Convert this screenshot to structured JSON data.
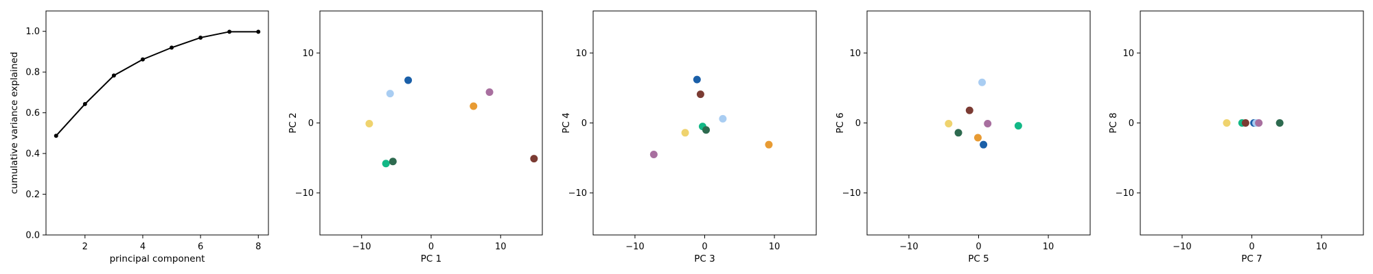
{
  "chart_data": [
    {
      "type": "line",
      "xlabel": "principal component",
      "ylabel": "cumulative variance explained",
      "xlim": [
        0.65,
        8.35
      ],
      "ylim": [
        0.0,
        1.1
      ],
      "xticks": [
        2,
        4,
        6,
        8
      ],
      "yticks": [
        0.0,
        0.2,
        0.4,
        0.6,
        0.8,
        1.0
      ],
      "xtick_labels": [
        "2",
        "4",
        "6",
        "8"
      ],
      "ytick_labels": [
        "0.0",
        "0.2",
        "0.4",
        "0.6",
        "0.8",
        "1.0"
      ],
      "series": [
        {
          "color": "#000000",
          "marker": "dot",
          "x": [
            1,
            2,
            3,
            4,
            5,
            6,
            7,
            8
          ],
          "y": [
            0.487,
            0.643,
            0.783,
            0.862,
            0.92,
            0.969,
            0.998,
            0.998
          ]
        }
      ],
      "grid": false
    },
    {
      "type": "scatter",
      "xlabel": "PC 1",
      "ylabel": "PC 2",
      "xlim": [
        -16,
        16
      ],
      "ylim": [
        -16,
        16
      ],
      "xticks": [
        -10,
        0,
        10
      ],
      "yticks": [
        -10,
        0,
        10
      ],
      "xtick_labels": [
        "−10",
        "0",
        "10"
      ],
      "ytick_labels": [
        "−10",
        "0",
        "10"
      ],
      "points": [
        {
          "x": -3.3,
          "y": 6.1,
          "color": "#1a5fa8"
        },
        {
          "x": -5.9,
          "y": 4.2,
          "color": "#a9cdf2"
        },
        {
          "x": 8.4,
          "y": 4.4,
          "color": "#a86f9f"
        },
        {
          "x": 6.1,
          "y": 2.4,
          "color": "#e89b33"
        },
        {
          "x": -8.9,
          "y": -0.1,
          "color": "#efd36e"
        },
        {
          "x": -6.5,
          "y": -5.8,
          "color": "#12b886"
        },
        {
          "x": -5.5,
          "y": -5.5,
          "color": "#2d6a4f"
        },
        {
          "x": 14.8,
          "y": -5.1,
          "color": "#7b3b33"
        }
      ],
      "grid": false
    },
    {
      "type": "scatter",
      "xlabel": "PC 3",
      "ylabel": "PC 4",
      "xlim": [
        -16,
        16
      ],
      "ylim": [
        -16,
        16
      ],
      "xticks": [
        -10,
        0,
        10
      ],
      "yticks": [
        -10,
        0,
        10
      ],
      "xtick_labels": [
        "−10",
        "0",
        "10"
      ],
      "ytick_labels": [
        "−10",
        "0",
        "10"
      ],
      "points": [
        {
          "x": -1.1,
          "y": 6.2,
          "color": "#1a5fa8"
        },
        {
          "x": -0.6,
          "y": 4.1,
          "color": "#7b3b33"
        },
        {
          "x": 2.6,
          "y": 0.6,
          "color": "#a9cdf2"
        },
        {
          "x": -0.3,
          "y": -0.5,
          "color": "#12b886"
        },
        {
          "x": 0.2,
          "y": -1.0,
          "color": "#2d6a4f"
        },
        {
          "x": -2.8,
          "y": -1.4,
          "color": "#efd36e"
        },
        {
          "x": 9.2,
          "y": -3.1,
          "color": "#e89b33"
        },
        {
          "x": -7.3,
          "y": -4.5,
          "color": "#a86f9f"
        }
      ],
      "grid": false
    },
    {
      "type": "scatter",
      "xlabel": "PC 5",
      "ylabel": "PC 6",
      "xlim": [
        -16,
        16
      ],
      "ylim": [
        -16,
        16
      ],
      "xticks": [
        -10,
        0,
        10
      ],
      "yticks": [
        -10,
        0,
        10
      ],
      "xtick_labels": [
        "−10",
        "0",
        "10"
      ],
      "ytick_labels": [
        "−10",
        "0",
        "10"
      ],
      "points": [
        {
          "x": 0.5,
          "y": 5.8,
          "color": "#a9cdf2"
        },
        {
          "x": -1.3,
          "y": 1.8,
          "color": "#7b3b33"
        },
        {
          "x": 1.3,
          "y": -0.1,
          "color": "#a86f9f"
        },
        {
          "x": -4.3,
          "y": -0.1,
          "color": "#efd36e"
        },
        {
          "x": 5.7,
          "y": -0.4,
          "color": "#12b886"
        },
        {
          "x": -2.9,
          "y": -1.4,
          "color": "#2d6a4f"
        },
        {
          "x": -0.1,
          "y": -2.1,
          "color": "#e89b33"
        },
        {
          "x": 0.7,
          "y": -3.1,
          "color": "#1a5fa8"
        }
      ],
      "grid": false
    },
    {
      "type": "scatter",
      "xlabel": "PC 7",
      "ylabel": "PC 8",
      "xlim": [
        -16,
        16
      ],
      "ylim": [
        -16,
        16
      ],
      "xticks": [
        -10,
        0,
        10
      ],
      "yticks": [
        -10,
        0,
        10
      ],
      "xtick_labels": [
        "−10",
        "0",
        "10"
      ],
      "ytick_labels": [
        "−10",
        "0",
        "10"
      ],
      "points": [
        {
          "x": -3.6,
          "y": 0.0,
          "color": "#efd36e"
        },
        {
          "x": -1.4,
          "y": 0.0,
          "color": "#12b886"
        },
        {
          "x": -0.9,
          "y": 0.0,
          "color": "#7b3b33"
        },
        {
          "x": 0.3,
          "y": 0.0,
          "color": "#1a5fa8"
        },
        {
          "x": 0.6,
          "y": 0.0,
          "color": "#a9cdf2"
        },
        {
          "x": 1.0,
          "y": 0.0,
          "color": "#a86f9f"
        },
        {
          "x": 4.0,
          "y": 0.0,
          "color": "#2d6a4f"
        }
      ],
      "grid": false
    }
  ]
}
